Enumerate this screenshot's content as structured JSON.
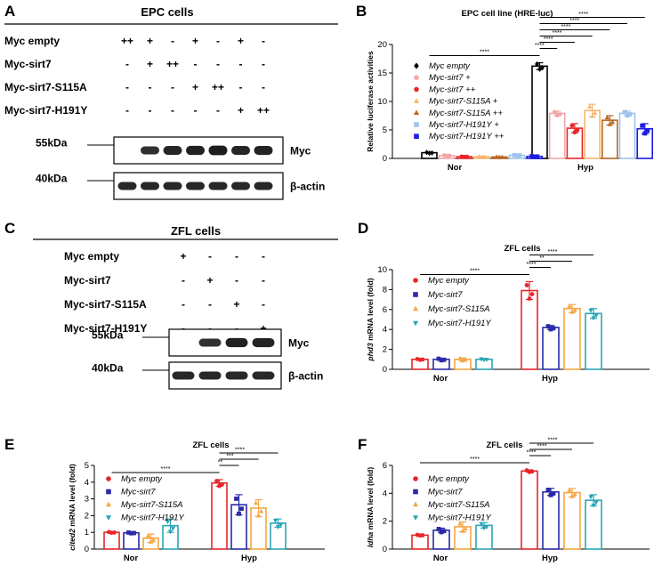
{
  "panels": {
    "A": {
      "letter": "A",
      "title": "EPC cells",
      "rows": [
        {
          "label": "Myc empty",
          "cells": [
            "++",
            "+",
            "-",
            "+",
            "-",
            "+",
            "-"
          ]
        },
        {
          "label": "Myc-sirt7",
          "cells": [
            "-",
            "+",
            "++",
            "-",
            "-",
            "-",
            "-"
          ]
        },
        {
          "label": "Myc-sirt7-S115A",
          "cells": [
            "-",
            "-",
            "-",
            "+",
            "++",
            "-",
            "-"
          ]
        },
        {
          "label": "Myc-sirt7-H191Y",
          "cells": [
            "-",
            "-",
            "-",
            "-",
            "-",
            "+",
            "++"
          ]
        }
      ],
      "blots": [
        {
          "marker": "55kDa",
          "protein": "Myc"
        },
        {
          "marker": "40kDa",
          "protein": "β-actin"
        }
      ]
    },
    "C": {
      "letter": "C",
      "title": "ZFL cells",
      "rows": [
        {
          "label": "Myc empty",
          "cells": [
            "+",
            "-",
            "-",
            "-"
          ]
        },
        {
          "label": "Myc-sirt7",
          "cells": [
            "-",
            "+",
            "-",
            "-"
          ]
        },
        {
          "label": "Myc-sirt7-S115A",
          "cells": [
            "-",
            "-",
            "+",
            "-"
          ]
        },
        {
          "label": "Myc-sirt7-H191Y",
          "cells": [
            "-",
            "-",
            "-",
            "+"
          ]
        }
      ],
      "blots": [
        {
          "marker": "55kDa",
          "protein": "Myc"
        },
        {
          "marker": "40kDa",
          "protein": "β-actin"
        }
      ]
    }
  },
  "colors": {
    "black": "#000000",
    "pink": "#f4a6a6",
    "red": "#e8262a",
    "light_orange": "#f7b470",
    "brown": "#b8651e",
    "light_blue": "#9ec3ec",
    "blue": "#1c1ce0",
    "dark_blue": "#2a2aa8",
    "orange": "#f5a645",
    "teal": "#2aa6b4"
  },
  "chart_data": [
    {
      "panel": "B",
      "type": "bar",
      "title": "EPC cell line (HRE-luc)",
      "ylabel": "Relative luciferase activities",
      "ylim": [
        0,
        20
      ],
      "yticks": [
        0,
        5,
        10,
        15,
        20
      ],
      "categories": [
        "Nor",
        "Hyp"
      ],
      "legend_position": "left",
      "series": [
        {
          "name": "Myc empty",
          "marker": "diamond",
          "color": "#000000",
          "values": [
            1.0,
            16.2
          ],
          "err": [
            0.1,
            0.6
          ]
        },
        {
          "name": "Myc-sirt7 +",
          "marker": "circle",
          "color": "#f4a6a6",
          "values": [
            0.5,
            7.9
          ],
          "err": [
            0.05,
            0.4
          ]
        },
        {
          "name": "Myc-sirt7 ++",
          "marker": "circle",
          "color": "#e8262a",
          "values": [
            0.3,
            5.3
          ],
          "err": [
            0.05,
            0.8
          ]
        },
        {
          "name": "Myc-sirt7-S115A +",
          "marker": "triangle",
          "color": "#f7b470",
          "values": [
            0.3,
            8.4
          ],
          "err": [
            0.05,
            1.1
          ]
        },
        {
          "name": "Myc-sirt7-S115A ++",
          "marker": "triangle",
          "color": "#b8651e",
          "values": [
            0.25,
            6.7
          ],
          "err": [
            0.05,
            0.8
          ]
        },
        {
          "name": "Myc-sirt7-H191Y +",
          "marker": "square",
          "color": "#9ec3ec",
          "values": [
            0.55,
            7.9
          ],
          "err": [
            0.05,
            0.4
          ]
        },
        {
          "name": "Myc-sirt7-H191Y ++",
          "marker": "square",
          "color": "#1c1ce0",
          "values": [
            0.35,
            5.2
          ],
          "err": [
            0.05,
            0.9
          ]
        }
      ],
      "significance": [
        "****",
        "****",
        "****",
        "****",
        "****",
        "****",
        "****"
      ]
    },
    {
      "panel": "D",
      "type": "bar",
      "title": "ZFL cells",
      "ylabel_italic": "phd3",
      "ylabel_rest": " mRNA level (fold)",
      "ylim": [
        0,
        10
      ],
      "yticks": [
        0,
        2,
        4,
        6,
        8,
        10
      ],
      "categories": [
        "Nor",
        "Hyp"
      ],
      "legend_position": "left",
      "series": [
        {
          "name": "Myc empty",
          "marker": "circle",
          "color": "#e8262a",
          "values": [
            1.0,
            7.9
          ],
          "err": [
            0.05,
            0.9
          ]
        },
        {
          "name": "Myc-sirt7",
          "marker": "square",
          "color": "#2a2aa8",
          "values": [
            1.0,
            4.2
          ],
          "err": [
            0.1,
            0.2
          ]
        },
        {
          "name": "Myc-sirt7-S115A",
          "marker": "triangle",
          "color": "#f5a645",
          "values": [
            1.0,
            6.1
          ],
          "err": [
            0.15,
            0.4
          ]
        },
        {
          "name": "Myc-sirt7-H191Y",
          "marker": "triangle-down",
          "color": "#2aa6b4",
          "values": [
            1.0,
            5.6
          ],
          "err": [
            0.05,
            0.5
          ]
        }
      ],
      "significance": [
        "****",
        "****",
        "**",
        "****"
      ]
    },
    {
      "panel": "E",
      "type": "bar",
      "title": "ZFL cells",
      "ylabel_italic": "cited2",
      "ylabel_rest": " mRNA level (fold)",
      "ylim": [
        0,
        5
      ],
      "yticks": [
        0,
        1,
        2,
        3,
        4,
        5
      ],
      "categories": [
        "Nor",
        "Hyp"
      ],
      "legend_position": "left",
      "series": [
        {
          "name": "Myc empty",
          "marker": "circle",
          "color": "#e8262a",
          "values": [
            1.0,
            3.95
          ],
          "err": [
            0.03,
            0.2
          ]
        },
        {
          "name": "Myc-sirt7",
          "marker": "square",
          "color": "#2a2aa8",
          "values": [
            0.97,
            2.65
          ],
          "err": [
            0.03,
            0.6
          ]
        },
        {
          "name": "Myc-sirt7-S115A",
          "marker": "triangle",
          "color": "#f5a645",
          "values": [
            0.65,
            2.45
          ],
          "err": [
            0.25,
            0.5
          ]
        },
        {
          "name": "Myc-sirt7-H191Y",
          "marker": "triangle-down",
          "color": "#2aa6b4",
          "values": [
            1.4,
            1.55
          ],
          "err": [
            0.4,
            0.25
          ]
        }
      ],
      "significance": [
        "****",
        "****",
        "***",
        "**"
      ]
    },
    {
      "panel": "F",
      "type": "bar",
      "title": "ZFL cells",
      "ylabel_italic": "ldha",
      "ylabel_rest": " mRNA level (fold)",
      "ylim": [
        0,
        6
      ],
      "yticks": [
        0,
        2,
        4,
        6
      ],
      "categories": [
        "Nor",
        "Hyp"
      ],
      "legend_position": "left",
      "series": [
        {
          "name": "Myc empty",
          "marker": "circle",
          "color": "#e8262a",
          "values": [
            1.0,
            5.6
          ],
          "err": [
            0.03,
            0.08
          ]
        },
        {
          "name": "Myc-sirt7",
          "marker": "square",
          "color": "#2a2aa8",
          "values": [
            1.35,
            4.1
          ],
          "err": [
            0.15,
            0.25
          ]
        },
        {
          "name": "Myc-sirt7-S115A",
          "marker": "triangle",
          "color": "#f5a645",
          "values": [
            1.6,
            4.05
          ],
          "err": [
            0.35,
            0.3
          ]
        },
        {
          "name": "Myc-sirt7-H191Y",
          "marker": "triangle-down",
          "color": "#2aa6b4",
          "values": [
            1.7,
            3.5
          ],
          "err": [
            0.2,
            0.4
          ]
        }
      ],
      "significance": [
        "****",
        "****",
        "****",
        "****"
      ]
    }
  ]
}
